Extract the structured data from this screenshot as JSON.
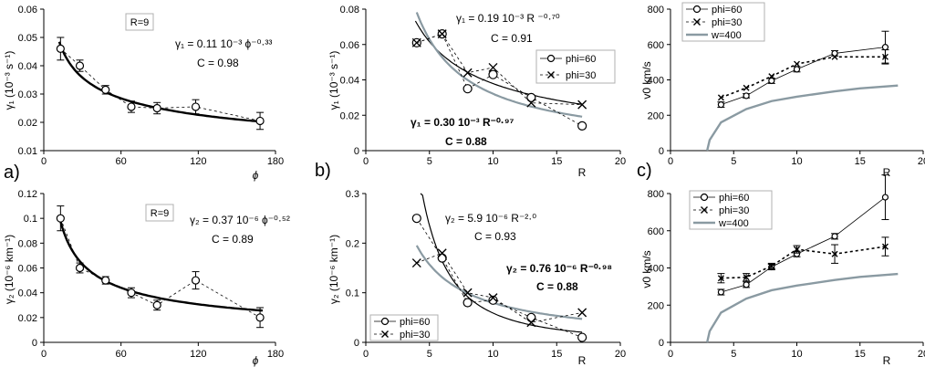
{
  "colors": {
    "ink": "#000000",
    "gray": "#8a9aa2",
    "frame": "#b0b0b0"
  },
  "chart_data": [
    {
      "id": "p1",
      "type": "scatter",
      "panel_letter": "",
      "xlim": [
        0,
        180
      ],
      "xticks": [
        0,
        60,
        120,
        180
      ],
      "xlabel": "ϕ",
      "ylim": [
        0.01,
        0.06
      ],
      "yticks": [
        0.01,
        0.02,
        0.03,
        0.04,
        0.05,
        0.06
      ],
      "ytick_labels": [
        "0.01",
        "0.02",
        "0.03",
        "0.04",
        "0.05",
        "0.06"
      ],
      "ylabel": "γ₁ (10⁻³ s⁻¹)",
      "box_label": "R=9",
      "annotations": [
        {
          "text": "γ₁ = 0.11 10⁻³ ϕ⁻⁰·³³"
        },
        {
          "text": "C = 0.98"
        }
      ],
      "series": [
        {
          "x": [
            13,
            28,
            48,
            68,
            88,
            118,
            168
          ],
          "y": [
            0.046,
            0.04,
            0.0315,
            0.0255,
            0.025,
            0.0255,
            0.0205
          ],
          "err": [
            0.004,
            0.002,
            0.0015,
            0.002,
            0.002,
            0.0025,
            0.003
          ]
        }
      ],
      "fits": [
        {
          "a": 0.11,
          "b": -0.33,
          "x_range": [
            12,
            170
          ]
        }
      ]
    },
    {
      "id": "p2",
      "type": "scatter",
      "panel_letter": "b)",
      "xlim": [
        0,
        20
      ],
      "xticks": [
        0,
        5,
        10,
        15,
        20
      ],
      "xlabel": "R",
      "ylim": [
        0,
        0.08
      ],
      "yticks": [
        0,
        0.02,
        0.04,
        0.06,
        0.08
      ],
      "ytick_labels": [
        "0",
        "0.02",
        "0.04",
        "0.06",
        "0.08"
      ],
      "ylabel": "γ₁ (10⁻³ s⁻¹)",
      "annotations": [
        {
          "text": "γ₁ = 0.19 10⁻³ R ⁻⁰·⁷⁰"
        },
        {
          "text": "C = 0.91"
        },
        {
          "text": "γ₁ = 0.30 10⁻³ R⁻⁰·⁹⁷"
        },
        {
          "text": "C = 0.88"
        }
      ],
      "legend": [
        {
          "name": "phi=60",
          "marker": "circle"
        },
        {
          "name": "phi=30",
          "marker": "cross"
        }
      ],
      "series": [
        {
          "name": "phi=60",
          "x": [
            4,
            6,
            8,
            10,
            13,
            17
          ],
          "y": [
            0.061,
            0.066,
            0.035,
            0.043,
            0.03,
            0.014
          ]
        },
        {
          "name": "phi=30",
          "x": [
            4,
            6,
            8,
            10,
            13,
            17
          ],
          "y": [
            0.061,
            0.066,
            0.044,
            0.047,
            0.027,
            0.026
          ]
        }
      ],
      "fits": [
        {
          "a": 0.19,
          "b": -0.7,
          "x_range": [
            3.9,
            17
          ],
          "color": "ink"
        },
        {
          "a": 0.3,
          "b": -0.97,
          "x_range": [
            4,
            17
          ],
          "color": "gray"
        }
      ]
    },
    {
      "id": "p3",
      "type": "line",
      "panel_letter": "c)",
      "xlim": [
        0,
        20
      ],
      "xticks": [
        0,
        5,
        10,
        15,
        20
      ],
      "xlabel": "R",
      "ylim": [
        0,
        800
      ],
      "yticks": [
        0,
        200,
        400,
        600,
        800
      ],
      "ytick_labels": [
        "0",
        "200",
        "400",
        "600",
        "800"
      ],
      "ylabel": "v0 km/s",
      "legend": [
        {
          "name": "phi=60",
          "marker": "circle"
        },
        {
          "name": "phi=30",
          "marker": "cross"
        },
        {
          "name": "w=400",
          "marker": "gray-line"
        }
      ],
      "series": [
        {
          "name": "phi=60",
          "x": [
            4,
            6,
            8,
            10,
            13,
            17
          ],
          "y": [
            260,
            310,
            395,
            460,
            550,
            585
          ],
          "err": [
            15,
            12,
            15,
            15,
            15,
            90
          ]
        },
        {
          "name": "phi=30",
          "x": [
            4,
            6,
            8,
            10,
            13,
            17
          ],
          "y": [
            300,
            355,
            420,
            490,
            530,
            530
          ],
          "err": [
            0,
            0,
            0,
            0,
            0,
            40
          ]
        },
        {
          "name": "w=400",
          "x": [
            2.9,
            3.1,
            4,
            6,
            8,
            10,
            13,
            15,
            18
          ],
          "y": [
            0,
            60,
            160,
            235,
            280,
            305,
            335,
            352,
            368
          ]
        }
      ]
    },
    {
      "id": "p4",
      "type": "scatter",
      "panel_letter": "a)",
      "xlim": [
        0,
        180
      ],
      "xticks": [
        0,
        60,
        120,
        180
      ],
      "xlabel": "ϕ",
      "ylim": [
        0,
        0.12
      ],
      "yticks": [
        0,
        0.02,
        0.04,
        0.06,
        0.08,
        0.1,
        0.12
      ],
      "ytick_labels": [
        "0",
        "0.02",
        "0.04",
        "0.06",
        "0.08",
        "0.1",
        "0.12"
      ],
      "ylabel": "γ₂ (10⁻⁶ km⁻¹)",
      "box_label": "R=9",
      "annotations": [
        {
          "text": "γ₂ = 0.37 10⁻⁶ ϕ⁻⁰·⁵²"
        },
        {
          "text": "C = 0.89"
        }
      ],
      "series": [
        {
          "x": [
            13,
            28,
            48,
            68,
            88,
            118,
            168
          ],
          "y": [
            0.1,
            0.06,
            0.05,
            0.04,
            0.03,
            0.05,
            0.02
          ],
          "err": [
            0.01,
            0.004,
            0.003,
            0.004,
            0.004,
            0.007,
            0.008
          ]
        }
      ],
      "fits": [
        {
          "a": 0.37,
          "b": -0.52,
          "x_range": [
            12,
            170
          ]
        }
      ]
    },
    {
      "id": "p5",
      "type": "scatter",
      "panel_letter": "",
      "xlim": [
        0,
        20
      ],
      "xticks": [
        0,
        5,
        10,
        15,
        20
      ],
      "xlabel": "R",
      "ylim": [
        0,
        0.3
      ],
      "yticks": [
        0,
        0.1,
        0.2,
        0.3
      ],
      "ytick_labels": [
        "0",
        "0.1",
        "0.2",
        "0.3"
      ],
      "ylabel": "γ₂ (10⁻⁶ km⁻¹)",
      "annotations": [
        {
          "text": "γ₂ = 5.9 10⁻⁶ R⁻²·⁰"
        },
        {
          "text": "C = 0.93"
        },
        {
          "text": "γ₂ = 0.76 10⁻⁶ R⁻⁰·⁹⁸"
        },
        {
          "text": "C = 0.88"
        }
      ],
      "legend": [
        {
          "name": "phi=60",
          "marker": "circle"
        },
        {
          "name": "phi=30",
          "marker": "cross"
        }
      ],
      "series": [
        {
          "name": "phi=60",
          "x": [
            4,
            6,
            8,
            10,
            13,
            17
          ],
          "y": [
            0.25,
            0.17,
            0.08,
            0.085,
            0.05,
            0.01
          ]
        },
        {
          "name": "phi=30",
          "x": [
            4,
            6,
            8,
            10,
            13,
            17
          ],
          "y": [
            0.16,
            0.18,
            0.1,
            0.09,
            0.04,
            0.06
          ]
        }
      ],
      "fits": [
        {
          "a": 5.9,
          "b": -2.0,
          "x_range": [
            4.3,
            17
          ],
          "color": "ink"
        },
        {
          "a": 0.76,
          "b": -0.98,
          "x_range": [
            4,
            17
          ],
          "color": "gray"
        }
      ]
    },
    {
      "id": "p6",
      "type": "line",
      "panel_letter": "",
      "xlim": [
        0,
        20
      ],
      "xticks": [
        0,
        5,
        10,
        15,
        20
      ],
      "xlabel": "R",
      "ylim": [
        0,
        800
      ],
      "yticks": [
        0,
        200,
        400,
        600,
        800
      ],
      "ytick_labels": [
        "0",
        "200",
        "400",
        "600",
        "800"
      ],
      "ylabel": "v0 km/s",
      "legend": [
        {
          "name": "phi=60",
          "marker": "circle"
        },
        {
          "name": "phi=30",
          "marker": "cross"
        },
        {
          "name": "w=400",
          "marker": "gray-line"
        }
      ],
      "series": [
        {
          "name": "phi=60",
          "x": [
            4,
            6,
            8,
            10,
            13,
            17
          ],
          "y": [
            270,
            310,
            405,
            475,
            570,
            780
          ],
          "err": [
            15,
            15,
            15,
            15,
            15,
            120
          ]
        },
        {
          "name": "phi=30",
          "x": [
            4,
            6,
            8,
            10,
            13,
            17
          ],
          "y": [
            345,
            350,
            410,
            500,
            475,
            515
          ],
          "err": [
            25,
            20,
            15,
            20,
            50,
            50
          ]
        },
        {
          "name": "w=400",
          "x": [
            2.9,
            3.1,
            4,
            6,
            8,
            10,
            13,
            15,
            18
          ],
          "y": [
            0,
            60,
            160,
            235,
            280,
            305,
            335,
            352,
            368
          ]
        }
      ]
    }
  ]
}
